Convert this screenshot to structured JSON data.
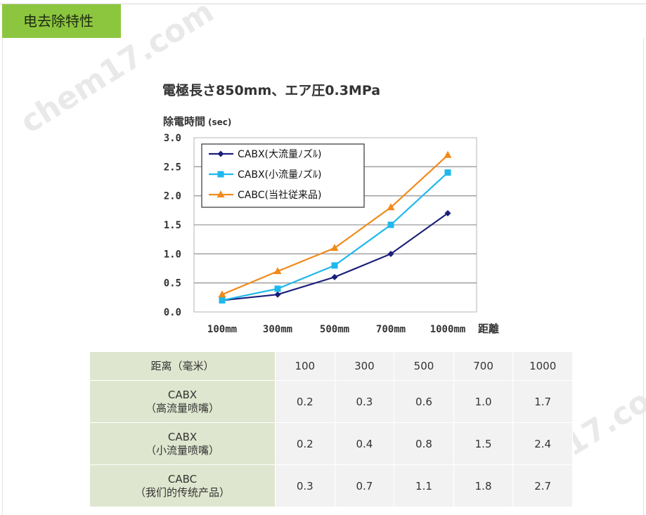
{
  "header": {
    "tab_label": "电去除特性"
  },
  "watermark": "chem17.com",
  "chart_data": {
    "type": "line",
    "title": "電極長さ850mm、エア圧0.3MPa",
    "ylabel": "除電時間",
    "yunit": "(sec)",
    "xlabel": "距離",
    "categories": [
      "100mm",
      "300mm",
      "500mm",
      "700mm",
      "1000mm"
    ],
    "ylim": [
      0,
      3.0
    ],
    "yticks": [
      "0.0",
      "0.5",
      "1.0",
      "1.5",
      "2.0",
      "2.5",
      "3.0"
    ],
    "grid": true,
    "legend_position": "top-left",
    "series": [
      {
        "name": "CABX(大流量ﾉズﾙ)",
        "marker": "diamond",
        "color": "#1a1f7a",
        "values": [
          0.2,
          0.3,
          0.6,
          1.0,
          1.7
        ]
      },
      {
        "name": "CABX(小流量ﾉズﾙ)",
        "marker": "square",
        "color": "#1fb8ec",
        "values": [
          0.2,
          0.4,
          0.8,
          1.5,
          2.4
        ]
      },
      {
        "name": "CABC(当社従来品)",
        "marker": "triangle",
        "color": "#f08a1c",
        "values": [
          0.3,
          0.7,
          1.1,
          1.8,
          2.7
        ]
      }
    ]
  },
  "table": {
    "header": {
      "label": "距离（毫米）",
      "values": [
        "100",
        "300",
        "500",
        "700",
        "1000"
      ]
    },
    "rows": [
      {
        "line1": "CABX",
        "line2": "（高流量喷嘴）",
        "values": [
          "0.2",
          "0.3",
          "0.6",
          "1.0",
          "1.7"
        ]
      },
      {
        "line1": "CABX",
        "line2": "（小流量喷嘴）",
        "values": [
          "0.2",
          "0.4",
          "0.8",
          "1.5",
          "2.4"
        ]
      },
      {
        "line1": "CABC",
        "line2": "（我们的传统产品）",
        "values": [
          "0.3",
          "0.7",
          "1.1",
          "1.8",
          "2.7"
        ]
      }
    ]
  }
}
